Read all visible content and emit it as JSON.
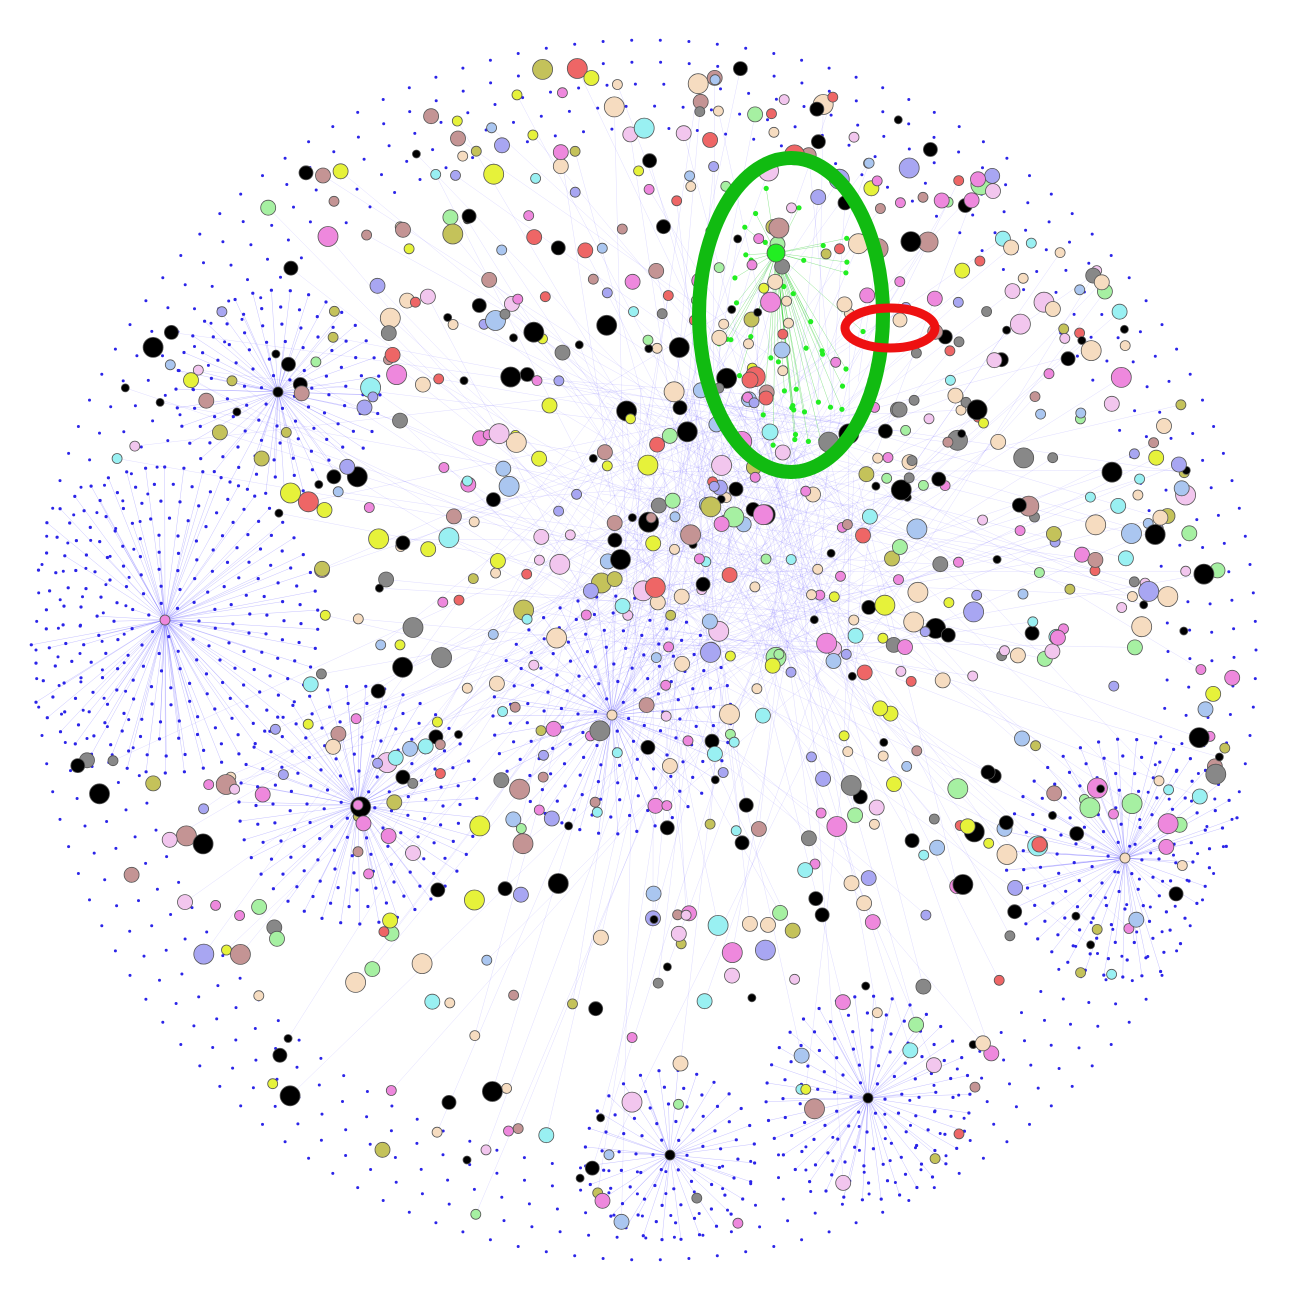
{
  "diagram": {
    "type": "network-graph",
    "background": "#ffffff",
    "edge_color": "#5a4cff",
    "leaf_node_color": "#2b24e8",
    "node_stroke": "#555555",
    "node_palette": {
      "black": "#000000",
      "pink": "#ee88dd",
      "light-pink": "#f2c6ee",
      "light-blue": "#aac6f0",
      "cyan": "#99f0f2",
      "lavender": "#a8a6f2",
      "beige": "#f6dcc0",
      "olive": "#c4c25a",
      "yellow": "#e6f23a",
      "light-green": "#a6f0a2",
      "green": "#22ee22",
      "salmon": "#ee6666",
      "mauve": "#c49494",
      "gray": "#888888"
    },
    "hubs": [
      {
        "name": "left-hub",
        "color": "#ee88dd"
      },
      {
        "name": "upper-left-hub",
        "color": "#000000"
      },
      {
        "name": "center-hub",
        "color": "#f6dcc0"
      },
      {
        "name": "lower-left-hub",
        "color": "#ee88dd"
      },
      {
        "name": "right-hub",
        "color": "#f6dcc0"
      },
      {
        "name": "bottom-hub",
        "color": "#000000"
      },
      {
        "name": "bottom-center-hub",
        "color": "#000000"
      }
    ],
    "highlights": [
      {
        "name": "green-cluster-ellipse",
        "color": "#11bb11"
      },
      {
        "name": "red-node-ellipse",
        "color": "#ee1111"
      }
    ]
  }
}
